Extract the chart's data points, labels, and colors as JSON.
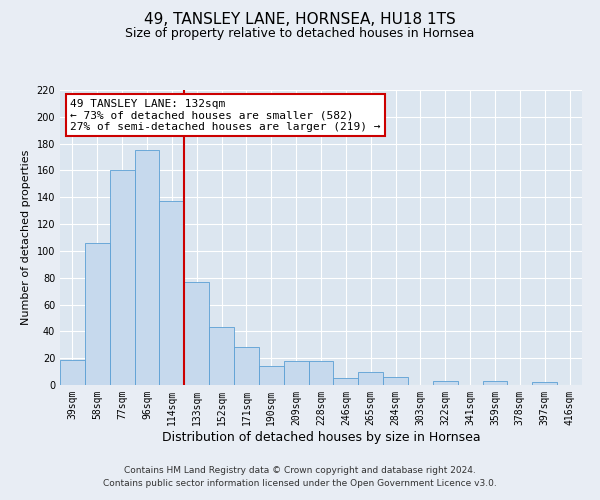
{
  "title": "49, TANSLEY LANE, HORNSEA, HU18 1TS",
  "subtitle": "Size of property relative to detached houses in Hornsea",
  "xlabel": "Distribution of detached houses by size in Hornsea",
  "ylabel": "Number of detached properties",
  "footer_line1": "Contains HM Land Registry data © Crown copyright and database right 2024.",
  "footer_line2": "Contains public sector information licensed under the Open Government Licence v3.0.",
  "categories": [
    "39sqm",
    "58sqm",
    "77sqm",
    "96sqm",
    "114sqm",
    "133sqm",
    "152sqm",
    "171sqm",
    "190sqm",
    "209sqm",
    "228sqm",
    "246sqm",
    "265sqm",
    "284sqm",
    "303sqm",
    "322sqm",
    "341sqm",
    "359sqm",
    "378sqm",
    "397sqm",
    "416sqm"
  ],
  "values": [
    19,
    106,
    160,
    175,
    137,
    77,
    43,
    28,
    14,
    18,
    18,
    5,
    10,
    6,
    0,
    3,
    0,
    3,
    0,
    2,
    0
  ],
  "bar_color": "#c6d9ed",
  "bar_edge_color": "#5a9fd4",
  "vline_color": "#cc0000",
  "annotation_title": "49 TANSLEY LANE: 132sqm",
  "annotation_line1": "← 73% of detached houses are smaller (582)",
  "annotation_line2": "27% of semi-detached houses are larger (219) →",
  "annotation_box_facecolor": "#ffffff",
  "annotation_box_edgecolor": "#cc0000",
  "ylim": [
    0,
    220
  ],
  "yticks": [
    0,
    20,
    40,
    60,
    80,
    100,
    120,
    140,
    160,
    180,
    200,
    220
  ],
  "background_color": "#e8edf4",
  "plot_bg_color": "#dce6f0",
  "grid_color": "#ffffff",
  "title_fontsize": 11,
  "subtitle_fontsize": 9,
  "xlabel_fontsize": 9,
  "ylabel_fontsize": 8,
  "tick_fontsize": 7,
  "annotation_fontsize": 8,
  "footer_fontsize": 6.5
}
